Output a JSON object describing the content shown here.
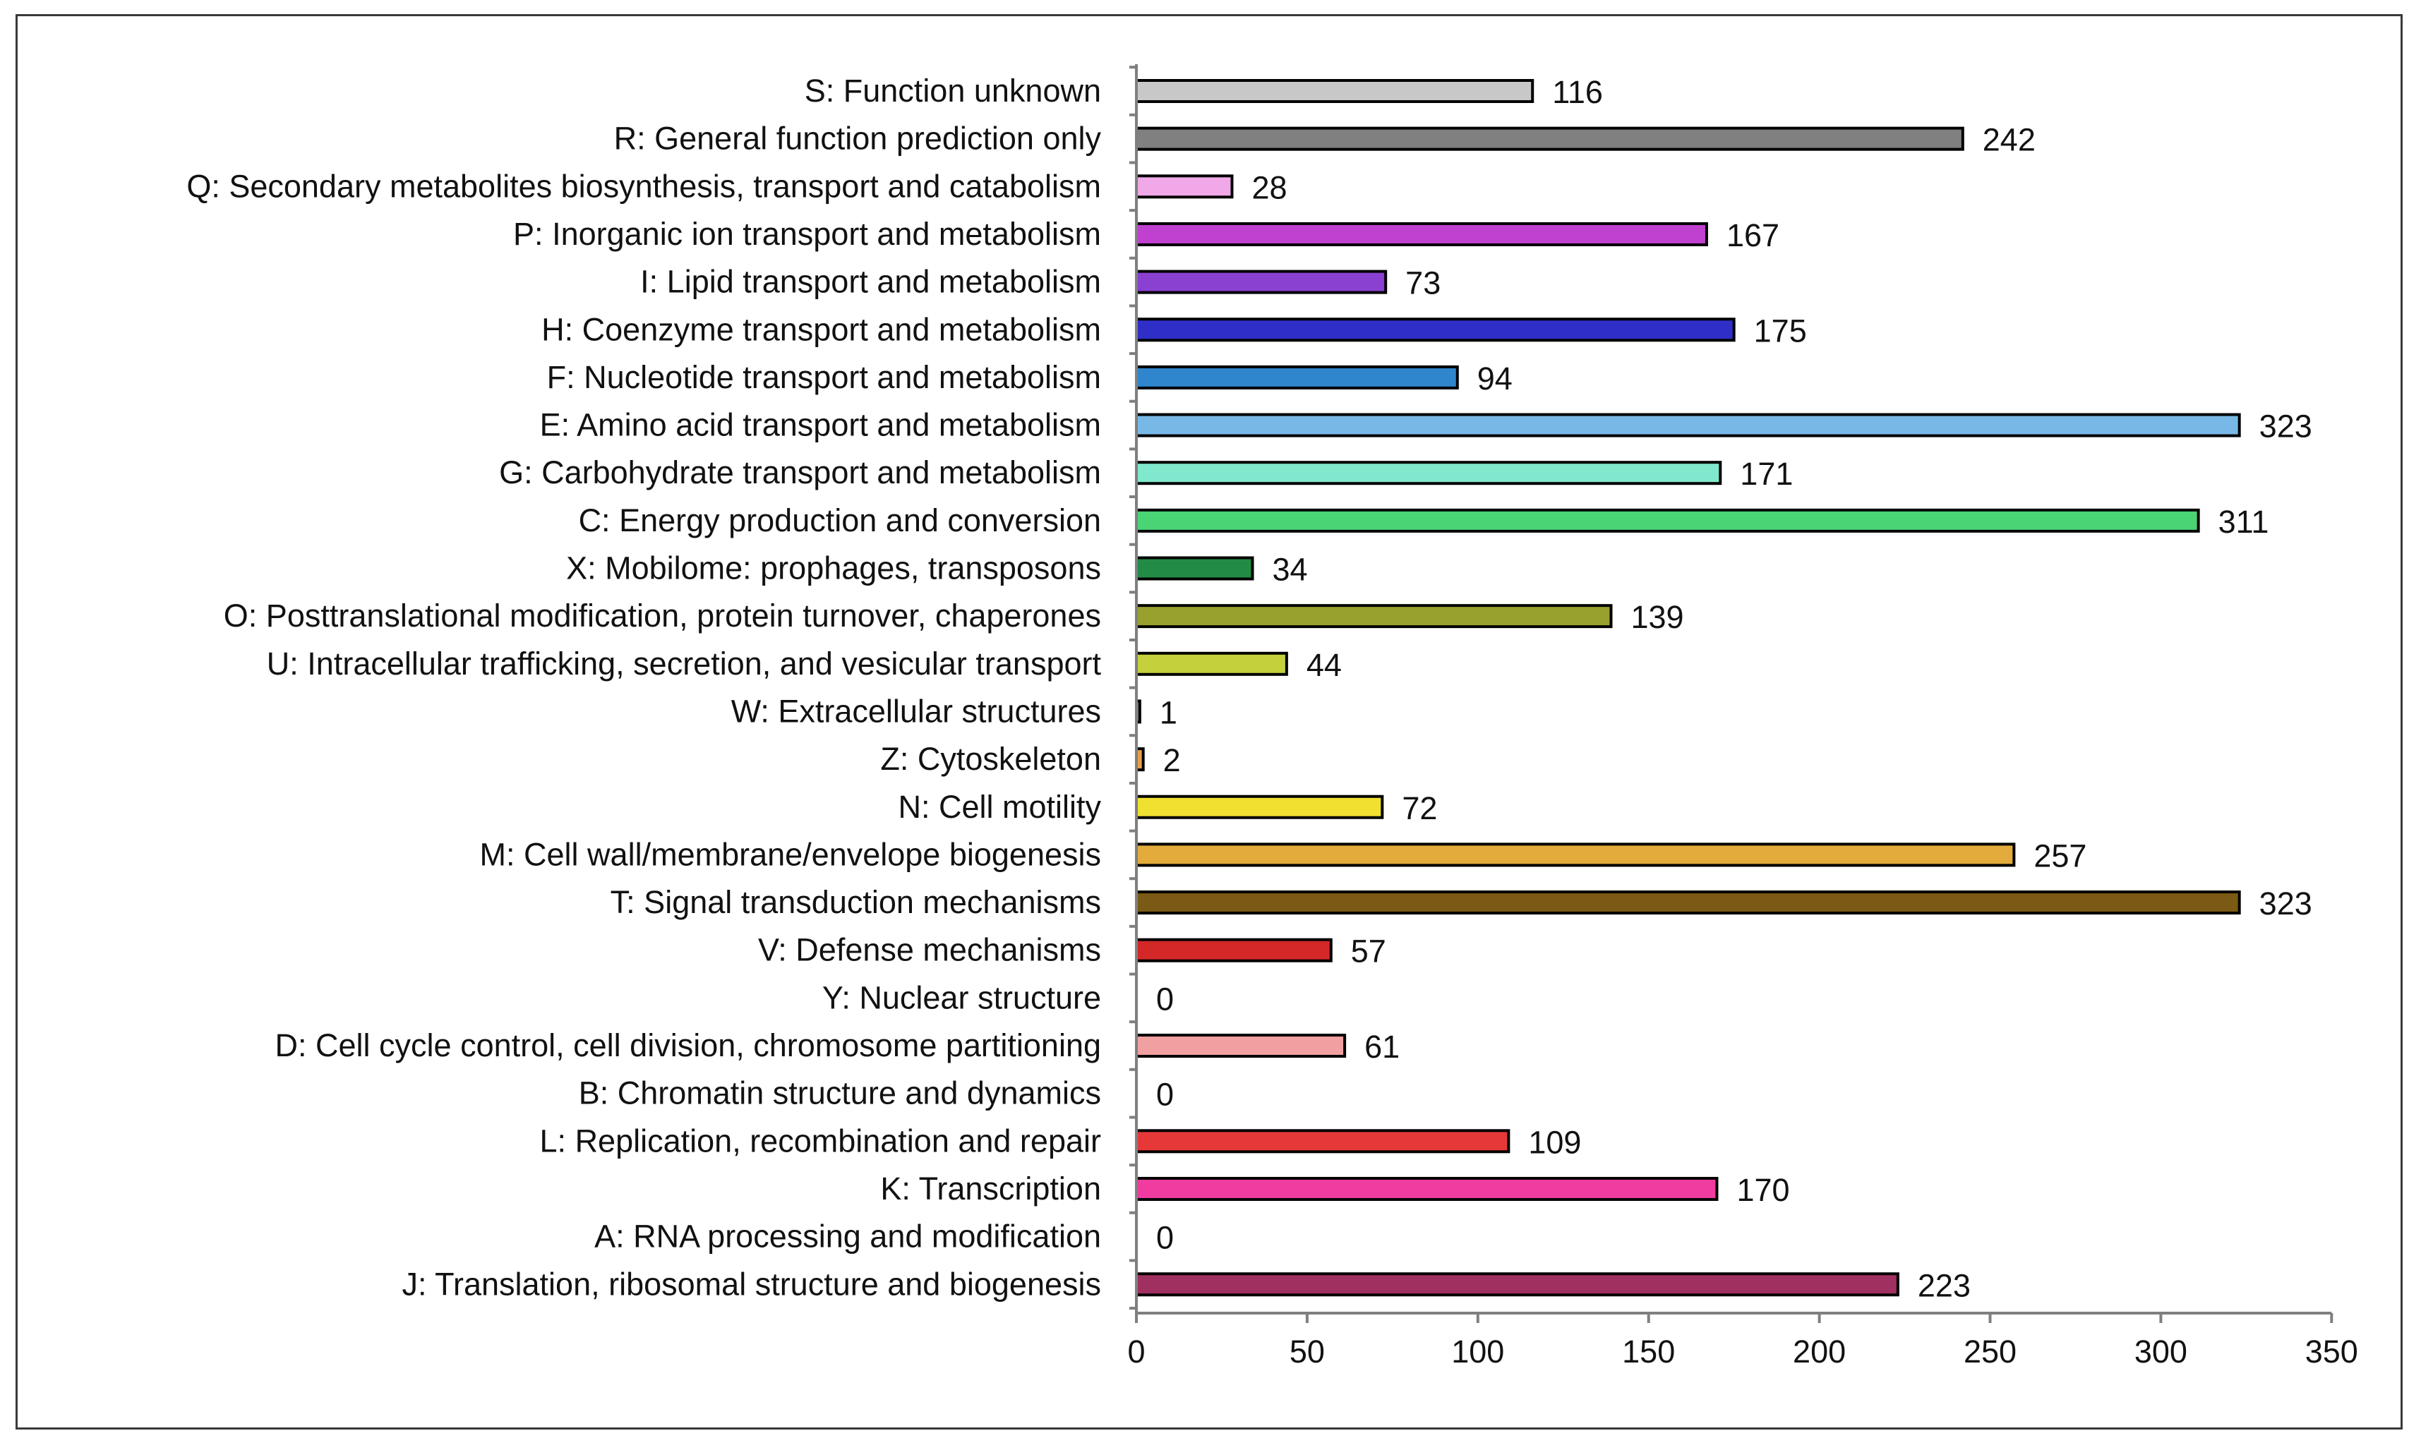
{
  "chart_data": {
    "type": "bar",
    "orientation": "horizontal",
    "title": "",
    "xlabel": "",
    "ylabel": "",
    "xlim": [
      0,
      350
    ],
    "xticks": [
      0,
      50,
      100,
      150,
      200,
      250,
      300,
      350
    ],
    "grid": false,
    "legend": "none",
    "categories": [
      "S: Function unknown",
      "R: General function prediction only",
      "Q: Secondary metabolites biosynthesis, transport and catabolism",
      "P: Inorganic ion transport and metabolism",
      "I: Lipid transport and metabolism",
      "H: Coenzyme transport and metabolism",
      "F: Nucleotide transport and metabolism",
      "E: Amino acid transport and metabolism",
      "G: Carbohydrate transport and metabolism",
      "C: Energy production and conversion",
      "X: Mobilome:  prophages, transposons",
      "O: Posttranslational modification, protein turnover, chaperones",
      "U: Intracellular trafficking, secretion, and vesicular transport",
      "W: Extracellular structures",
      "Z: Cytoskeleton",
      "N: Cell motility",
      "M: Cell wall/membrane/envelope biogenesis",
      "T: Signal transduction mechanisms",
      "V: Defense mechanisms",
      "Y: Nuclear structure",
      "D: Cell cycle control, cell division, chromosome partitioning",
      "B: Chromatin structure and dynamics",
      "L: Replication, recombination and repair",
      "K: Transcription",
      "A: RNA processing and modification",
      "J: Translation, ribosomal structure and biogenesis"
    ],
    "values": [
      116,
      242,
      28,
      167,
      73,
      175,
      94,
      323,
      171,
      311,
      34,
      139,
      44,
      1,
      2,
      72,
      257,
      323,
      57,
      0,
      61,
      0,
      109,
      170,
      0,
      223
    ],
    "colors": [
      "#c8c8c8",
      "#808080",
      "#f0a8e8",
      "#c040d0",
      "#8a40d0",
      "#2f2fc8",
      "#2f86cc",
      "#78b8e6",
      "#80e8cc",
      "#4ad476",
      "#228b46",
      "#99a12e",
      "#c4d13c",
      "#8a8a8a",
      "#e8a040",
      "#f0e030",
      "#e3ab3c",
      "#7a5a14",
      "#d42828",
      "#ffffff",
      "#f0a0a0",
      "#ffffff",
      "#e63838",
      "#f03ca0",
      "#ffffff",
      "#a03060"
    ]
  }
}
